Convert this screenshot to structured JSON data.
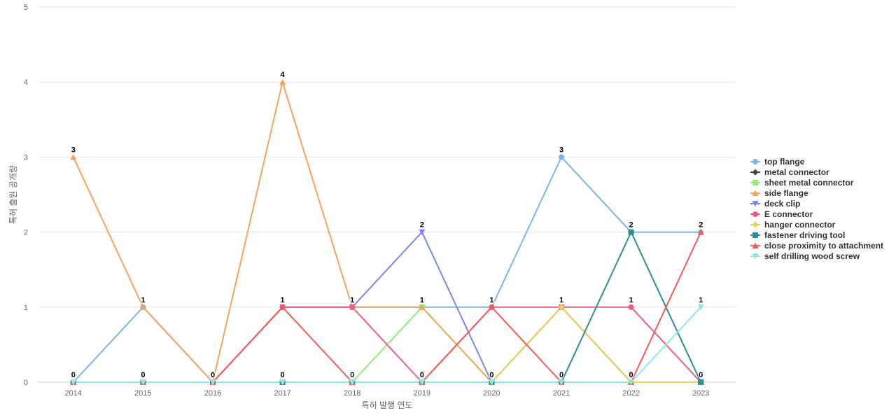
{
  "chart_data": {
    "type": "line",
    "xlabel": "특허 발행 연도",
    "ylabel": "특허 출원 공개량",
    "ylim": [
      0,
      5
    ],
    "yticks": [
      0,
      1,
      2,
      3,
      4,
      5
    ],
    "grid": true,
    "legend_position": "right",
    "categories": [
      "2014",
      "2015",
      "2016",
      "2017",
      "2018",
      "2019",
      "2020",
      "2021",
      "2022",
      "2023"
    ],
    "series": [
      {
        "name": "top flange",
        "color": "#7cb5ec",
        "marker": "circle",
        "values": [
          0,
          1,
          0,
          1,
          1,
          1,
          1,
          3,
          2,
          2
        ]
      },
      {
        "name": "metal connector",
        "color": "#434348",
        "marker": "diamond",
        "values": [
          0,
          0,
          0,
          0,
          0,
          0,
          0,
          0,
          0,
          0
        ]
      },
      {
        "name": "sheet metal connector",
        "color": "#90ed7d",
        "marker": "square",
        "values": [
          0,
          0,
          0,
          0,
          0,
          1,
          0,
          0,
          0,
          0
        ]
      },
      {
        "name": "side flange",
        "color": "#f7a35c",
        "marker": "triangle",
        "values": [
          3,
          1,
          0,
          4,
          1,
          1,
          0,
          1,
          0,
          0
        ]
      },
      {
        "name": "deck clip",
        "color": "#8085e9",
        "marker": "triangle-down",
        "values": [
          0,
          0,
          0,
          1,
          1,
          2,
          0,
          1,
          0,
          0
        ]
      },
      {
        "name": "E connector",
        "color": "#f15c80",
        "marker": "circle",
        "values": [
          0,
          0,
          0,
          1,
          1,
          0,
          1,
          1,
          1,
          0
        ]
      },
      {
        "name": "hanger connector",
        "color": "#e4d354",
        "marker": "diamond",
        "values": [
          0,
          0,
          0,
          0,
          0,
          0,
          0,
          1,
          0,
          0
        ]
      },
      {
        "name": "fastener driving tool",
        "color": "#2b908f",
        "marker": "square",
        "values": [
          0,
          0,
          0,
          0,
          0,
          0,
          0,
          0,
          2,
          0
        ]
      },
      {
        "name": "close proximity to attachment",
        "color": "#f45b5b",
        "marker": "triangle",
        "values": [
          0,
          0,
          0,
          1,
          0,
          0,
          1,
          0,
          0,
          2
        ]
      },
      {
        "name": "self drilling wood screw",
        "color": "#91e8e1",
        "marker": "triangle-down",
        "values": [
          0,
          0,
          0,
          0,
          0,
          0,
          0,
          0,
          0,
          1
        ]
      }
    ],
    "data_labels": [
      {
        "x": "2014",
        "value": 3
      },
      {
        "x": "2014",
        "value": 0
      },
      {
        "x": "2015",
        "value": 1
      },
      {
        "x": "2015",
        "value": 0
      },
      {
        "x": "2016",
        "value": 0
      },
      {
        "x": "2017",
        "value": 4
      },
      {
        "x": "2017",
        "value": 1
      },
      {
        "x": "2017",
        "value": 0
      },
      {
        "x": "2018",
        "value": 1
      },
      {
        "x": "2018",
        "value": 0
      },
      {
        "x": "2019",
        "value": 2
      },
      {
        "x": "2019",
        "value": 1
      },
      {
        "x": "2019",
        "value": 0
      },
      {
        "x": "2020",
        "value": 1
      },
      {
        "x": "2020",
        "value": 0
      },
      {
        "x": "2021",
        "value": 3
      },
      {
        "x": "2021",
        "value": 1
      },
      {
        "x": "2021",
        "value": 0
      },
      {
        "x": "2022",
        "value": 2
      },
      {
        "x": "2022",
        "value": 1
      },
      {
        "x": "2022",
        "value": 0
      },
      {
        "x": "2023",
        "value": 2
      },
      {
        "x": "2023",
        "value": 1
      },
      {
        "x": "2023",
        "value": 0
      }
    ]
  }
}
